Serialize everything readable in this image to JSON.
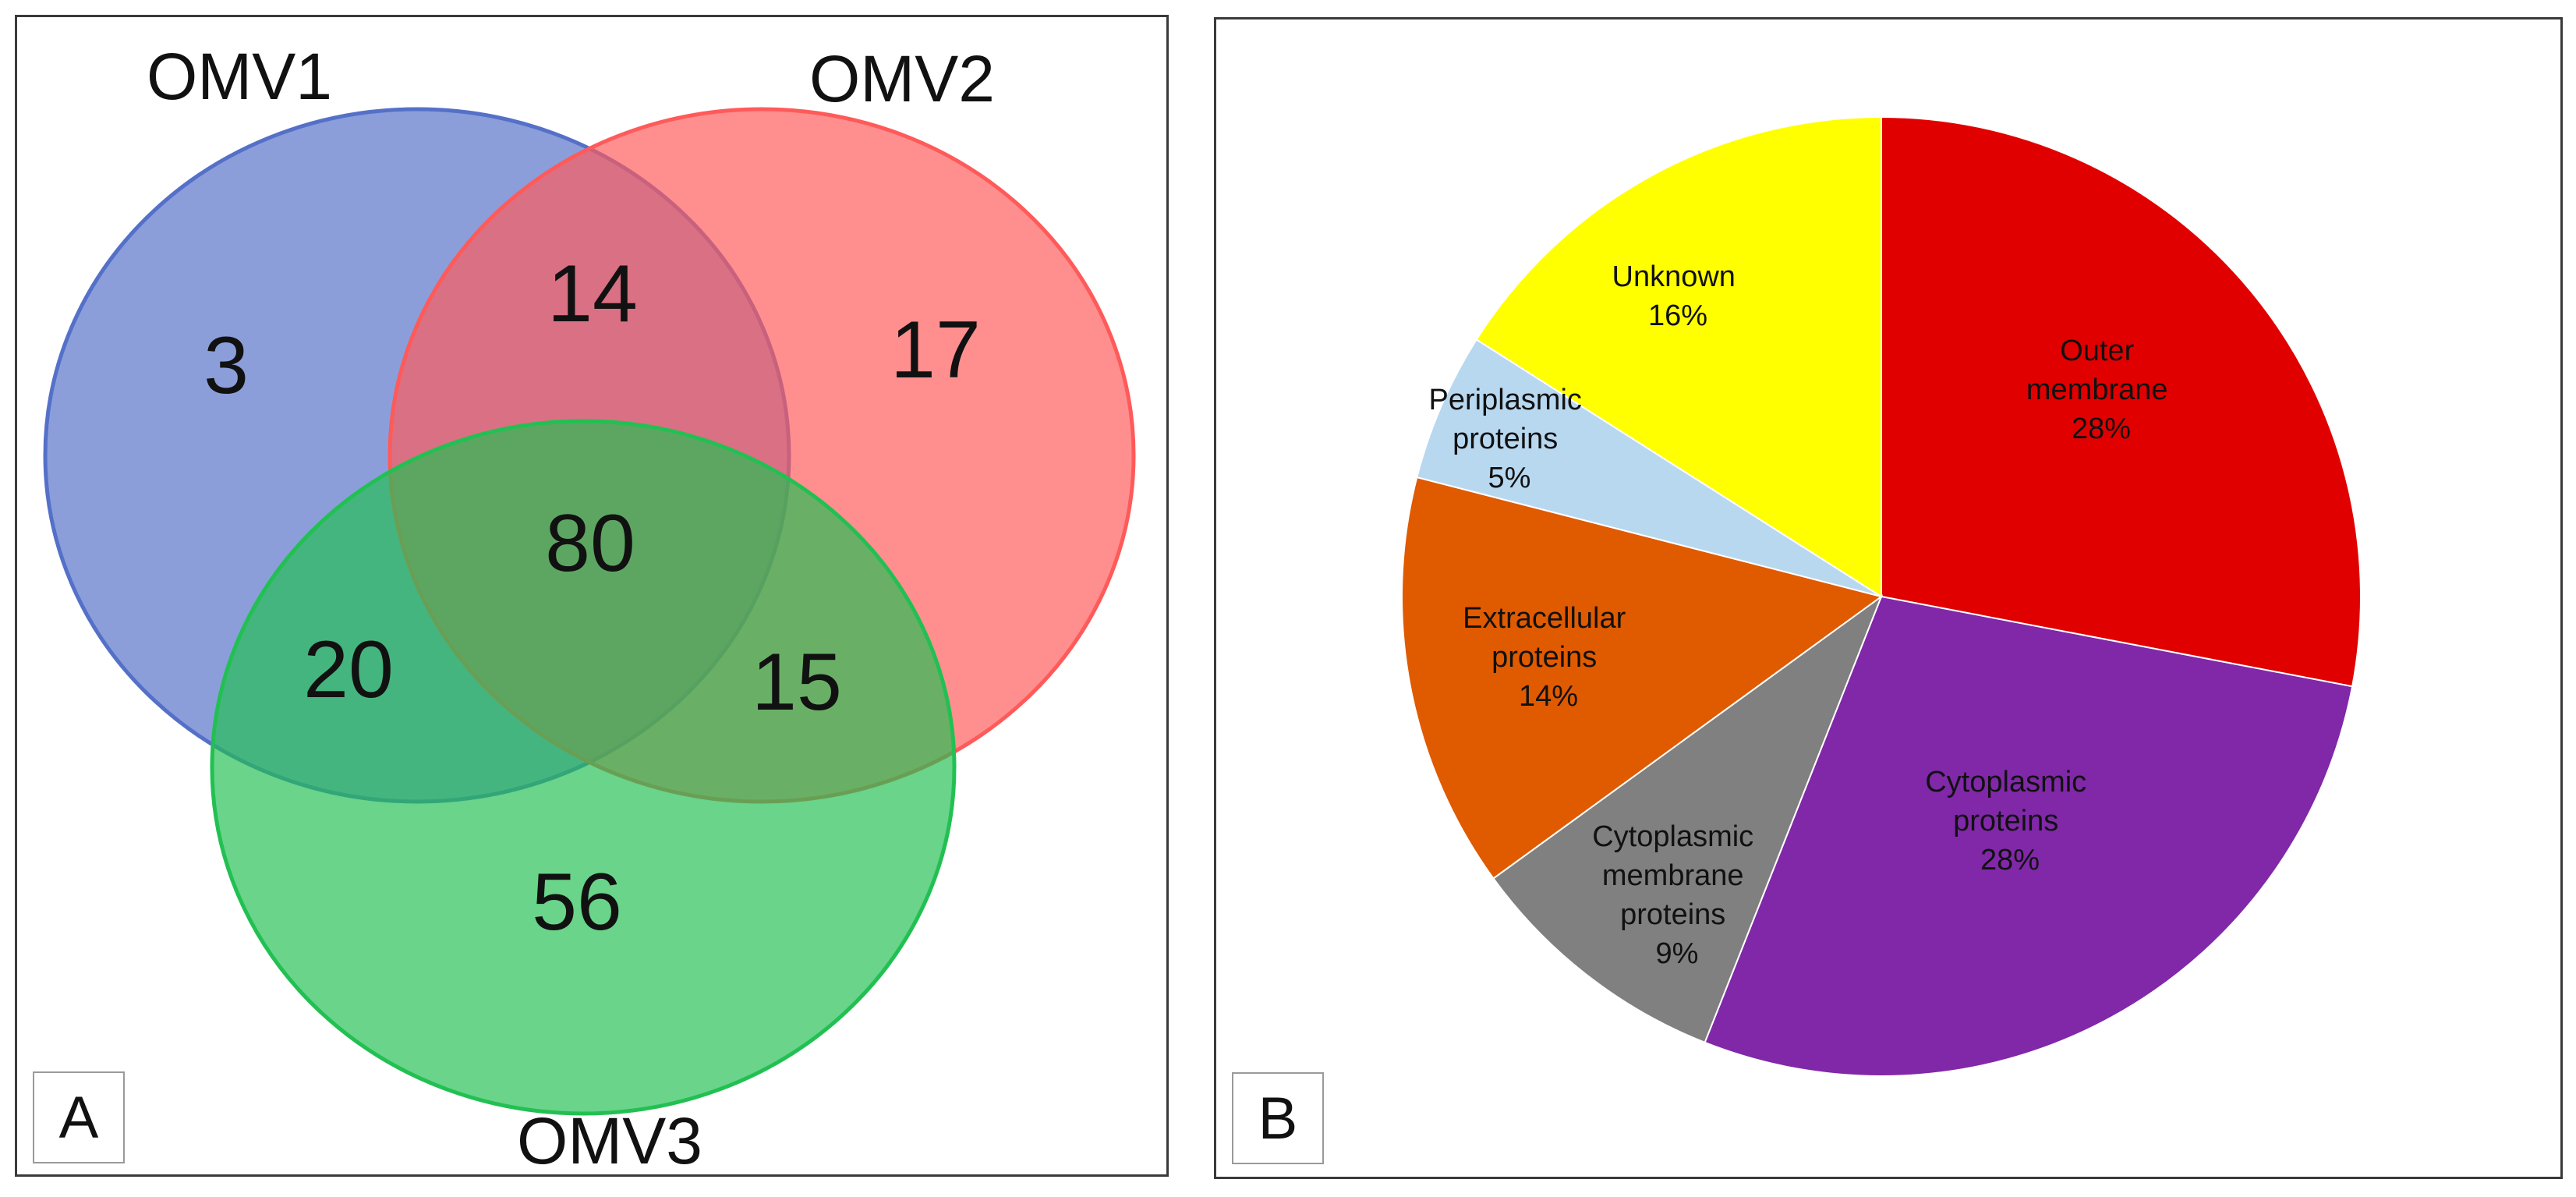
{
  "chart_data": [
    {
      "type": "venn",
      "panel_label": "A",
      "sets": [
        {
          "name": "OMV1",
          "color": "#5470c8"
        },
        {
          "name": "OMV2",
          "color": "#ff5a5a"
        },
        {
          "name": "OMV3",
          "color": "#22c052"
        }
      ],
      "regions": [
        {
          "sets": [
            "OMV1"
          ],
          "value": "3"
        },
        {
          "sets": [
            "OMV1",
            "OMV2"
          ],
          "value": "14"
        },
        {
          "sets": [
            "OMV2"
          ],
          "value": "17"
        },
        {
          "sets": [
            "OMV1",
            "OMV2",
            "OMV3"
          ],
          "value": "80"
        },
        {
          "sets": [
            "OMV1",
            "OMV3"
          ],
          "value": "20"
        },
        {
          "sets": [
            "OMV2",
            "OMV3"
          ],
          "value": "15"
        },
        {
          "sets": [
            "OMV3"
          ],
          "value": "56"
        }
      ]
    },
    {
      "type": "pie",
      "panel_label": "B",
      "slices": [
        {
          "label": "Outer membrane",
          "value": 28,
          "pct": "28%",
          "color": "#e00000"
        },
        {
          "label": "Cytoplasmic proteins",
          "value": 28,
          "pct": "28%",
          "color": "#8028a8"
        },
        {
          "label": "Cytoplasmic membrane proteins",
          "value": 9,
          "pct": "9%",
          "color": "#808080"
        },
        {
          "label": "Extracellular proteins",
          "value": 14,
          "pct": "14%",
          "color": "#e05a00"
        },
        {
          "label": "Periplasmic proteins",
          "value": 5,
          "pct": "5%",
          "color": "#b8d8f0"
        },
        {
          "label": "Unknown",
          "value": 16,
          "pct": "16%",
          "color": "#ffff00"
        }
      ]
    }
  ]
}
